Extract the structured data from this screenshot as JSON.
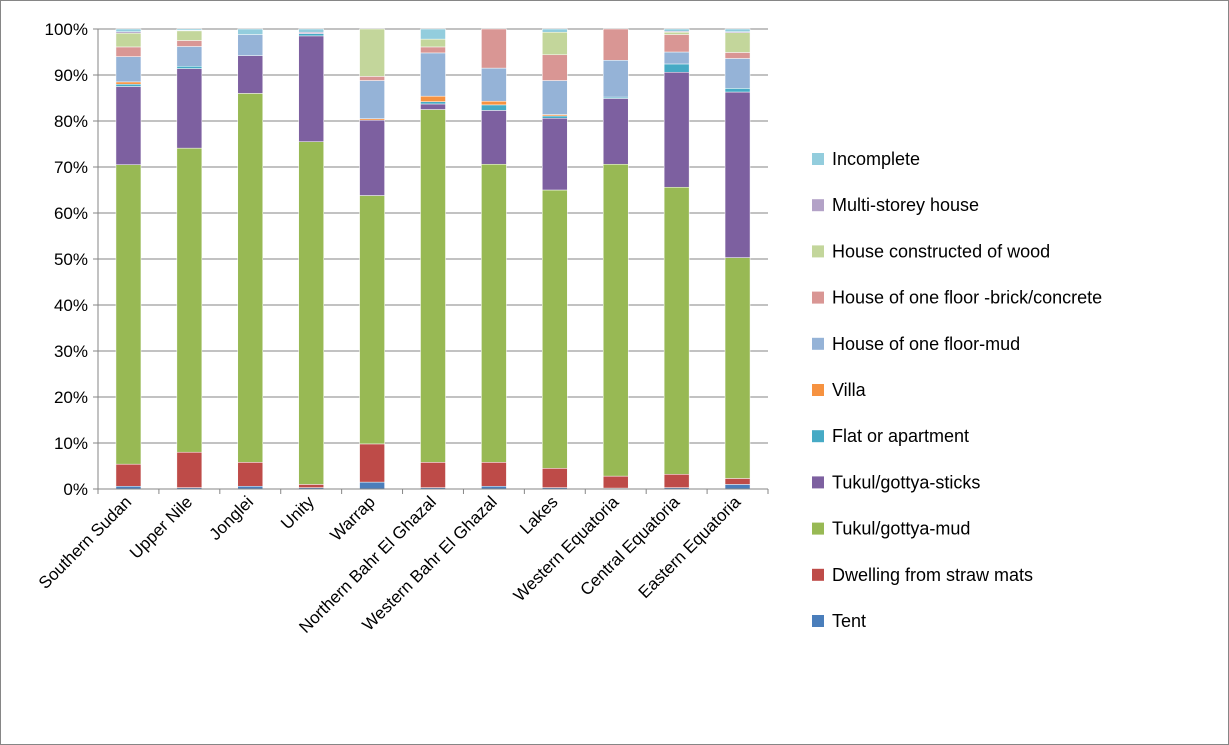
{
  "chart_data": {
    "type": "bar",
    "stacked": true,
    "percent": true,
    "title": "",
    "xlabel": "",
    "ylabel": "",
    "ylim": [
      0,
      100
    ],
    "y_ticks": [
      "0%",
      "10%",
      "20%",
      "30%",
      "40%",
      "50%",
      "60%",
      "70%",
      "80%",
      "90%",
      "100%"
    ],
    "grid": true,
    "legend_position": "right",
    "categories": [
      "Southern Sudan",
      "Upper Nile",
      "Jonglei",
      "Unity",
      "Warrap",
      "Northern Bahr El Ghazal",
      "Western Bahr El Ghazal",
      "Lakes",
      "Western Equatoria",
      "Central Equatoria",
      "Eastern Equatoria"
    ],
    "series": [
      {
        "name": "Tent",
        "color": "#4a7ebb",
        "values": [
          0.6,
          0.3,
          0.6,
          0.3,
          1.5,
          0.3,
          0.6,
          0.3,
          0.2,
          0.3,
          1.0
        ]
      },
      {
        "name": "Dwelling from straw  mats",
        "color": "#be4b48",
        "values": [
          4.8,
          7.7,
          5.2,
          0.7,
          8.3,
          5.5,
          5.2,
          4.2,
          2.6,
          2.9,
          1.3
        ]
      },
      {
        "name": "Tukul/gottya-mud",
        "color": "#98b954",
        "values": [
          65.1,
          66.1,
          80.2,
          74.5,
          54.0,
          76.7,
          64.8,
          60.5,
          67.8,
          62.4,
          48.0
        ]
      },
      {
        "name": "Tukul/gottya-sticks",
        "color": "#7d60a0",
        "values": [
          17.0,
          17.3,
          8.2,
          23.0,
          16.4,
          1.2,
          11.7,
          15.6,
          14.3,
          25.0,
          36.0
        ]
      },
      {
        "name": "Flat or apartment",
        "color": "#46aac5",
        "values": [
          0.5,
          0.5,
          0.0,
          0.5,
          0.0,
          0.5,
          1.2,
          0.5,
          0.3,
          1.8,
          0.8
        ]
      },
      {
        "name": "Villa",
        "color": "#f69240",
        "values": [
          0.5,
          0.0,
          0.0,
          0.0,
          0.3,
          1.2,
          0.8,
          0.3,
          0.0,
          0.0,
          0.0
        ]
      },
      {
        "name": "House of one floor-mud",
        "color": "#95b3d7",
        "values": [
          5.5,
          4.3,
          4.6,
          0.0,
          8.3,
          9.4,
          7.2,
          7.4,
          8.0,
          2.6,
          6.5
        ]
      },
      {
        "name": "House of one floor -brick/concrete",
        "color": "#d99694",
        "values": [
          2.1,
          1.3,
          0.0,
          0.0,
          0.9,
          1.3,
          8.5,
          5.6,
          6.8,
          3.8,
          1.3
        ]
      },
      {
        "name": "House constructed of wood",
        "color": "#c3d69b",
        "values": [
          3.0,
          2.1,
          0.0,
          0.0,
          10.3,
          1.7,
          0.0,
          4.9,
          0.0,
          0.5,
          4.3
        ]
      },
      {
        "name": "Multi-storey house",
        "color": "#b3a2c7",
        "values": [
          0.3,
          0.1,
          0.0,
          0.3,
          0.0,
          0.0,
          0.0,
          0.0,
          0.0,
          0.2,
          0.2
        ]
      },
      {
        "name": "Incomplete",
        "color": "#93cddd",
        "values": [
          0.6,
          0.3,
          1.2,
          0.7,
          0.0,
          2.2,
          0.0,
          0.7,
          0.0,
          0.5,
          0.6
        ]
      }
    ],
    "legend_order": [
      "Incomplete",
      "Multi-storey house",
      "House constructed of wood",
      "House of one floor -brick/concrete",
      "House of one floor-mud",
      "Villa",
      "Flat or apartment",
      "Tukul/gottya-sticks",
      "Tukul/gottya-mud",
      "Dwelling from straw  mats",
      "Tent"
    ],
    "colors": {
      "gridline": "#868686",
      "axis": "#868686",
      "frame": "#868686",
      "bar_edge": "#ffffff"
    }
  }
}
